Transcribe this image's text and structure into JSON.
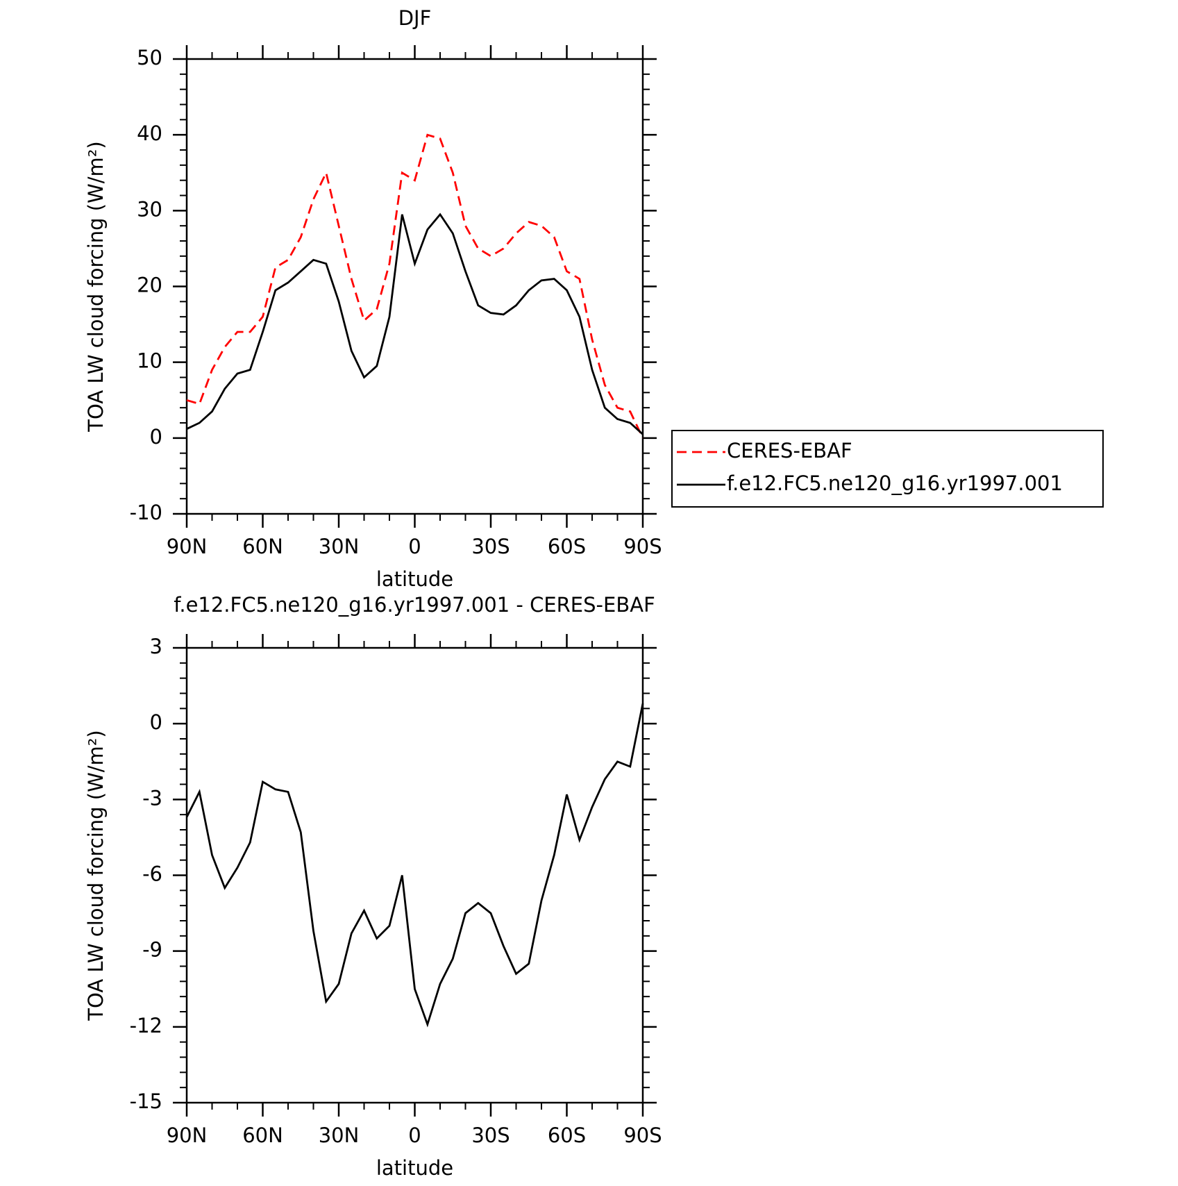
{
  "chart_data": [
    {
      "type": "line",
      "title": "DJF",
      "xlabel": "latitude",
      "ylabel": "TOA LW cloud forcing (W/m²)",
      "x": [
        90,
        85,
        80,
        75,
        70,
        65,
        60,
        55,
        50,
        45,
        40,
        35,
        30,
        25,
        20,
        15,
        10,
        5,
        0,
        -5,
        -10,
        -15,
        -20,
        -25,
        -30,
        -35,
        -40,
        -45,
        -50,
        -55,
        -60,
        -65,
        -70,
        -75,
        -80,
        -85,
        -90
      ],
      "series": [
        {
          "name": "CERES-EBAF",
          "color": "#ff0000",
          "dash": "dashed",
          "values": [
            5,
            4.5,
            9,
            12,
            14,
            14,
            16,
            22.5,
            23.5,
            26.5,
            31.5,
            35,
            28,
            21,
            15.5,
            17,
            23,
            35,
            34,
            40,
            39.5,
            35,
            28,
            25,
            24,
            25,
            27,
            28.5,
            28,
            26.5,
            22,
            21,
            13,
            7,
            4,
            3.5,
            0
          ]
        },
        {
          "name": "f.e12.FC5.ne120_g16.yr1997.001",
          "color": "#000000",
          "dash": "solid",
          "values": [
            1.2,
            2,
            3.5,
            6.5,
            8.5,
            9,
            14,
            19.5,
            20.5,
            22,
            23.5,
            23,
            18,
            11.5,
            8,
            9.5,
            16,
            29.5,
            23,
            27.5,
            29.5,
            27,
            22,
            17.5,
            16.5,
            16.3,
            17.5,
            19.5,
            20.8,
            21,
            19.5,
            16,
            9,
            4,
            2.5,
            2,
            0.5
          ]
        }
      ],
      "xlim": [
        90,
        -90
      ],
      "xticks": [
        {
          "value": 90,
          "label": "90N"
        },
        {
          "value": 60,
          "label": "60N"
        },
        {
          "value": 30,
          "label": "30N"
        },
        0,
        {
          "value": -30,
          "label": "30S"
        },
        {
          "value": -60,
          "label": "60S"
        },
        {
          "value": -90,
          "label": "90S"
        }
      ],
      "ylim": [
        -10,
        50
      ],
      "yticks": [
        -10,
        0,
        10,
        20,
        30,
        40,
        50
      ],
      "legend": "right"
    },
    {
      "type": "line",
      "title": "f.e12.FC5.ne120_g16.yr1997.001 - CERES-EBAF",
      "xlabel": "latitude",
      "ylabel": "TOA LW cloud forcing (W/m²)",
      "x": [
        90,
        85,
        80,
        75,
        70,
        65,
        60,
        55,
        50,
        45,
        40,
        35,
        30,
        25,
        20,
        15,
        10,
        5,
        0,
        -5,
        -10,
        -15,
        -20,
        -25,
        -30,
        -35,
        -40,
        -45,
        -50,
        -55,
        -60,
        -65,
        -70,
        -75,
        -80,
        -85,
        -90
      ],
      "color": "#000000",
      "values": [
        -3.7,
        -2.7,
        -5.2,
        -6.5,
        -5.7,
        -4.7,
        -2.3,
        -2.6,
        -2.7,
        -4.3,
        -8.2,
        -11,
        -10.3,
        -8.3,
        -7.4,
        -8.5,
        -8,
        -6,
        -10.5,
        -11.9,
        -10.3,
        -9.3,
        -7.5,
        -7.1,
        -7.5,
        -8.8,
        -9.9,
        -9.5,
        -7,
        -5.2,
        -2.8,
        -4.6,
        -3.3,
        -2.2,
        -1.5,
        -1.7,
        0.8
      ],
      "xlim": [
        90,
        -90
      ],
      "xticks": [
        {
          "value": 90,
          "label": "90N"
        },
        {
          "value": 60,
          "label": "60N"
        },
        {
          "value": 30,
          "label": "30N"
        },
        0,
        {
          "value": -30,
          "label": "30S"
        },
        {
          "value": -60,
          "label": "60S"
        },
        {
          "value": -90,
          "label": "90S"
        }
      ],
      "ylim": [
        -15,
        3
      ],
      "yticks": [
        -15,
        -12,
        -9,
        -6,
        -3,
        0,
        3
      ]
    }
  ]
}
